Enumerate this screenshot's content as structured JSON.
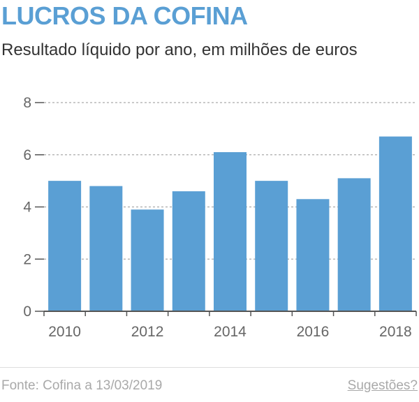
{
  "header": {
    "title": "LUCROS DA COFINA",
    "subtitle": "Resultado líquido por ano, em milhões de euros"
  },
  "footer": {
    "source": "Fonte: Cofina a 13/03/2019",
    "suggestions": "Sugestões?"
  },
  "colors": {
    "bar": "#5a9fd4",
    "title": "#5a9fd4",
    "grid": "#aaaaaa",
    "axis": "#555555"
  },
  "chart_data": {
    "type": "bar",
    "categories": [
      "2010",
      "2011",
      "2012",
      "2013",
      "2014",
      "2015",
      "2016",
      "2017",
      "2018"
    ],
    "values": [
      5.0,
      4.8,
      3.9,
      4.6,
      6.1,
      5.0,
      4.3,
      5.1,
      6.7
    ],
    "x_tick_labels": [
      "2010",
      "2012",
      "2014",
      "2016",
      "2018"
    ],
    "y_ticks": [
      0,
      2,
      4,
      6,
      8
    ],
    "ylim": [
      0,
      8
    ],
    "grid": true,
    "legend": "none",
    "xlabel": "",
    "ylabel": ""
  }
}
